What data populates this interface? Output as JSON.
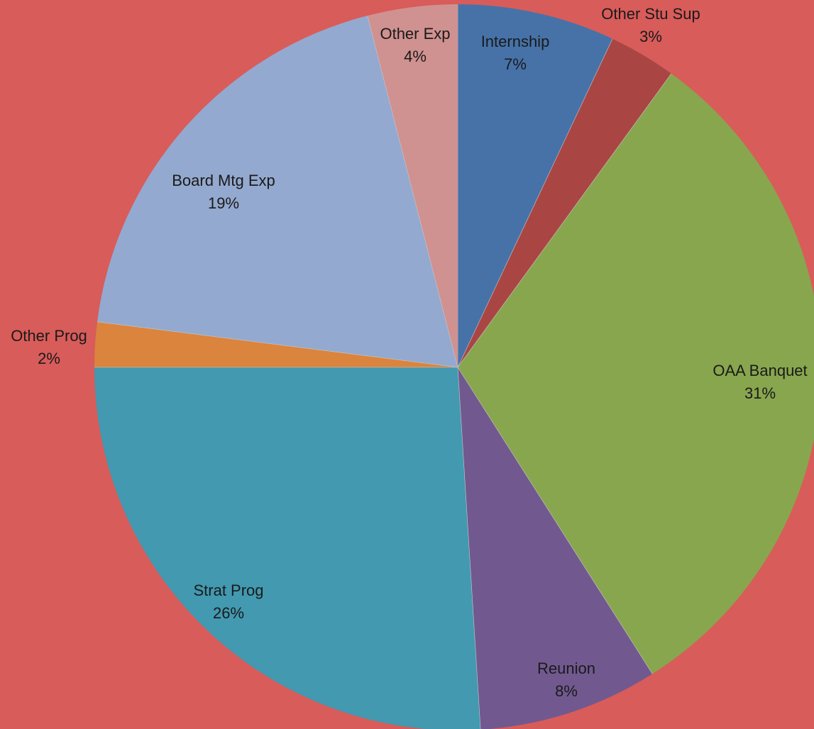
{
  "chart_data": {
    "type": "pie",
    "title": "",
    "start_angle_deg": 0,
    "direction": "clockwise",
    "background_color": "#d85c5a",
    "slices": [
      {
        "label": "Internship",
        "value": 7,
        "pct_label": "7%",
        "color": "#4672a8"
      },
      {
        "label": "Other Stu Sup",
        "value": 3,
        "pct_label": "3%",
        "color": "#a94644"
      },
      {
        "label": "OAA Banquet",
        "value": 31,
        "pct_label": "31%",
        "color": "#88a64e"
      },
      {
        "label": "Reunion",
        "value": 8,
        "pct_label": "8%",
        "color": "#71598f"
      },
      {
        "label": "Strat Prog",
        "value": 26,
        "pct_label": "26%",
        "color": "#4299b0"
      },
      {
        "label": "Other Prog",
        "value": 2,
        "pct_label": "2%",
        "color": "#db843d"
      },
      {
        "label": "Board Mtg Exp",
        "value": 19,
        "pct_label": "19%",
        "color": "#94a9cf"
      },
      {
        "label": "Other Exp",
        "value": 4,
        "pct_label": "4%",
        "color": "#d09191"
      }
    ]
  }
}
